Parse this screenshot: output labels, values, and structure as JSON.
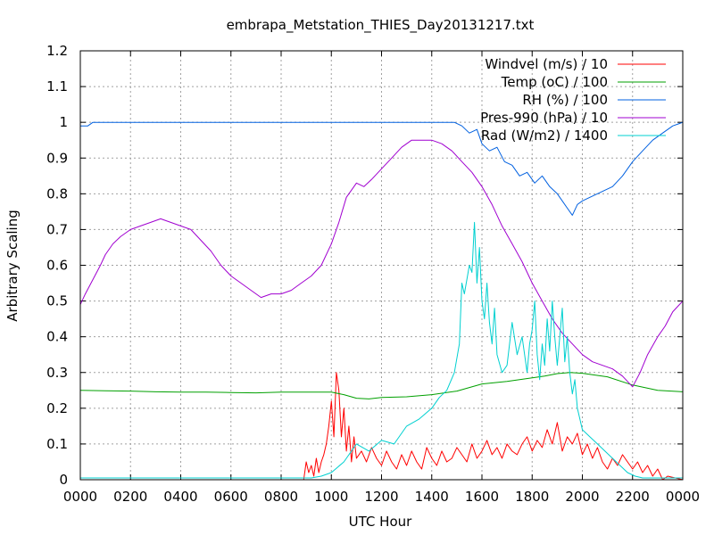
{
  "chart_data": {
    "type": "line",
    "title": "embrapa_Metstation_THIES_Day20131217.txt",
    "xlabel": "UTC Hour",
    "ylabel": "Arbitrary Scaling",
    "xlim": [
      0,
      24
    ],
    "ylim": [
      0,
      1.2
    ],
    "grid": true,
    "legend_position": "top-right",
    "x_ticks": [
      "0000",
      "0200",
      "0400",
      "0600",
      "0800",
      "1000",
      "1200",
      "1400",
      "1600",
      "1800",
      "2000",
      "2200",
      "0000"
    ],
    "y_ticks": [
      "0",
      "0.1",
      "0.2",
      "0.3",
      "0.4",
      "0.5",
      "0.6",
      "0.7",
      "0.8",
      "0.9",
      "1",
      "1.1",
      "1.2"
    ],
    "series": [
      {
        "name": "Windvel (m/s) / 10",
        "color": "#ff0000",
        "x": [
          0,
          8.9,
          9.0,
          9.1,
          9.2,
          9.3,
          9.4,
          9.5,
          9.6,
          9.7,
          9.8,
          9.9,
          10.0,
          10.1,
          10.2,
          10.3,
          10.4,
          10.5,
          10.6,
          10.7,
          10.8,
          10.9,
          11.0,
          11.2,
          11.4,
          11.6,
          11.8,
          12.0,
          12.2,
          12.4,
          12.6,
          12.8,
          13.0,
          13.2,
          13.4,
          13.6,
          13.8,
          14.0,
          14.2,
          14.4,
          14.6,
          14.8,
          15.0,
          15.2,
          15.4,
          15.6,
          15.8,
          16.0,
          16.2,
          16.4,
          16.6,
          16.8,
          17.0,
          17.2,
          17.4,
          17.6,
          17.8,
          18.0,
          18.2,
          18.4,
          18.6,
          18.8,
          19.0,
          19.2,
          19.4,
          19.6,
          19.8,
          20.0,
          20.2,
          20.4,
          20.6,
          20.8,
          21.0,
          21.2,
          21.4,
          21.6,
          21.8,
          22.0,
          22.2,
          22.4,
          22.6,
          22.8,
          23.0,
          23.2,
          23.4,
          24
        ],
        "values": [
          0,
          0,
          0.05,
          0.02,
          0.04,
          0.01,
          0.06,
          0.02,
          0.05,
          0.07,
          0.1,
          0.15,
          0.22,
          0.12,
          0.3,
          0.25,
          0.12,
          0.2,
          0.08,
          0.15,
          0.05,
          0.12,
          0.06,
          0.08,
          0.05,
          0.09,
          0.06,
          0.04,
          0.08,
          0.05,
          0.03,
          0.07,
          0.04,
          0.08,
          0.05,
          0.03,
          0.09,
          0.06,
          0.04,
          0.08,
          0.05,
          0.06,
          0.09,
          0.07,
          0.05,
          0.1,
          0.06,
          0.08,
          0.11,
          0.07,
          0.09,
          0.06,
          0.1,
          0.08,
          0.07,
          0.1,
          0.12,
          0.08,
          0.11,
          0.09,
          0.14,
          0.1,
          0.16,
          0.08,
          0.12,
          0.1,
          0.13,
          0.07,
          0.1,
          0.06,
          0.09,
          0.05,
          0.03,
          0.06,
          0.04,
          0.07,
          0.05,
          0.03,
          0.05,
          0.02,
          0.04,
          0.01,
          0.03,
          0,
          0.01,
          0
        ]
      },
      {
        "name": "Temp (oC) / 100",
        "color": "#00a000",
        "x": [
          0,
          1,
          2,
          3,
          4,
          5,
          6,
          7,
          8,
          9,
          10,
          10.5,
          11,
          11.5,
          12,
          13,
          14,
          15,
          15.5,
          16,
          17,
          18,
          18.5,
          19,
          19.5,
          20,
          21,
          22,
          23,
          24
        ],
        "values": [
          0.25,
          0.249,
          0.248,
          0.246,
          0.245,
          0.245,
          0.244,
          0.243,
          0.245,
          0.245,
          0.245,
          0.238,
          0.228,
          0.226,
          0.23,
          0.232,
          0.238,
          0.248,
          0.258,
          0.268,
          0.275,
          0.285,
          0.29,
          0.297,
          0.3,
          0.298,
          0.288,
          0.265,
          0.25,
          0.246
        ]
      },
      {
        "name": "RH (%) / 100",
        "color": "#0060e0",
        "x": [
          0,
          0.3,
          0.5,
          1,
          14.9,
          15.2,
          15.5,
          15.8,
          16.0,
          16.3,
          16.6,
          16.9,
          17.2,
          17.5,
          17.8,
          18.1,
          18.4,
          18.7,
          19.0,
          19.2,
          19.4,
          19.6,
          19.8,
          20.0,
          20.3,
          20.6,
          20.9,
          21.2,
          21.6,
          22.0,
          22.4,
          22.8,
          23.2,
          23.6,
          24
        ],
        "values": [
          0.99,
          0.99,
          1.0,
          1.0,
          1.0,
          0.99,
          0.97,
          0.98,
          0.94,
          0.92,
          0.93,
          0.89,
          0.88,
          0.85,
          0.86,
          0.83,
          0.85,
          0.82,
          0.8,
          0.78,
          0.76,
          0.74,
          0.77,
          0.78,
          0.79,
          0.8,
          0.81,
          0.82,
          0.85,
          0.89,
          0.92,
          0.95,
          0.97,
          0.99,
          1.0
        ]
      },
      {
        "name": "Pres-990 (hPa) / 10",
        "color": "#a000d0",
        "x": [
          0,
          0.2,
          0.5,
          0.8,
          1.0,
          1.3,
          1.6,
          2.0,
          2.4,
          2.8,
          3.2,
          3.6,
          4.0,
          4.4,
          4.8,
          5.2,
          5.6,
          6.0,
          6.4,
          6.8,
          7.2,
          7.6,
          8.0,
          8.4,
          8.8,
          9.2,
          9.6,
          10.0,
          10.3,
          10.6,
          11.0,
          11.3,
          11.6,
          12.0,
          12.4,
          12.8,
          13.2,
          13.6,
          14.0,
          14.4,
          14.8,
          15.2,
          15.6,
          16.0,
          16.4,
          16.8,
          17.2,
          17.6,
          18.0,
          18.4,
          18.8,
          19.2,
          19.6,
          20.0,
          20.4,
          20.8,
          21.2,
          21.6,
          22.0,
          22.3,
          22.6,
          23.0,
          23.3,
          23.6,
          24
        ],
        "values": [
          0.49,
          0.52,
          0.56,
          0.6,
          0.63,
          0.66,
          0.68,
          0.7,
          0.71,
          0.72,
          0.73,
          0.72,
          0.71,
          0.7,
          0.67,
          0.64,
          0.6,
          0.57,
          0.55,
          0.53,
          0.51,
          0.52,
          0.52,
          0.53,
          0.55,
          0.57,
          0.6,
          0.66,
          0.72,
          0.79,
          0.83,
          0.82,
          0.84,
          0.87,
          0.9,
          0.93,
          0.95,
          0.95,
          0.95,
          0.94,
          0.92,
          0.89,
          0.86,
          0.82,
          0.77,
          0.71,
          0.66,
          0.61,
          0.55,
          0.5,
          0.45,
          0.41,
          0.38,
          0.35,
          0.33,
          0.32,
          0.31,
          0.29,
          0.26,
          0.3,
          0.35,
          0.4,
          0.43,
          0.47,
          0.5
        ]
      },
      {
        "name": "Rad (W/m2) / 1400",
        "color": "#00d0d0",
        "x": [
          0,
          9.2,
          9.6,
          10.0,
          10.5,
          11.0,
          11.5,
          12.0,
          12.5,
          13.0,
          13.5,
          14.0,
          14.3,
          14.6,
          14.9,
          15.1,
          15.2,
          15.3,
          15.5,
          15.6,
          15.7,
          15.8,
          15.9,
          16.0,
          16.1,
          16.2,
          16.3,
          16.4,
          16.5,
          16.6,
          16.8,
          17.0,
          17.2,
          17.4,
          17.6,
          17.8,
          17.9,
          18.0,
          18.1,
          18.2,
          18.3,
          18.4,
          18.5,
          18.6,
          18.7,
          18.8,
          18.9,
          19.0,
          19.1,
          19.2,
          19.3,
          19.4,
          19.5,
          19.6,
          19.7,
          19.8,
          20.0,
          20.3,
          20.6,
          20.9,
          21.2,
          21.5,
          21.8,
          22.1,
          22.4,
          24
        ],
        "values": [
          0.005,
          0.005,
          0.01,
          0.02,
          0.05,
          0.1,
          0.08,
          0.11,
          0.1,
          0.15,
          0.17,
          0.2,
          0.23,
          0.25,
          0.3,
          0.38,
          0.55,
          0.52,
          0.6,
          0.58,
          0.72,
          0.55,
          0.65,
          0.5,
          0.45,
          0.55,
          0.44,
          0.38,
          0.48,
          0.35,
          0.3,
          0.32,
          0.44,
          0.35,
          0.4,
          0.3,
          0.38,
          0.42,
          0.5,
          0.35,
          0.28,
          0.38,
          0.32,
          0.45,
          0.36,
          0.5,
          0.4,
          0.32,
          0.4,
          0.48,
          0.33,
          0.4,
          0.3,
          0.24,
          0.28,
          0.2,
          0.14,
          0.12,
          0.1,
          0.08,
          0.06,
          0.04,
          0.02,
          0.01,
          0.005,
          0.005
        ]
      }
    ]
  }
}
